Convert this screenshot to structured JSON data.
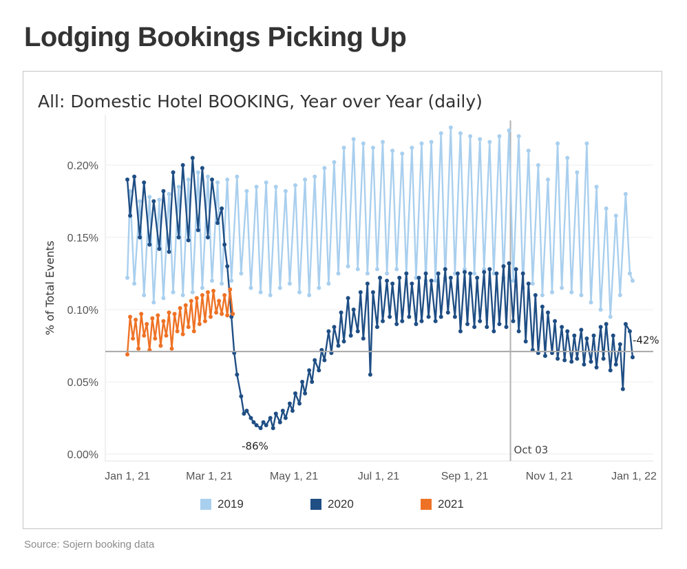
{
  "page_title": "Lodging Bookings Picking Up",
  "source": "Source: Sojern booking data",
  "chart_data": {
    "type": "line",
    "title": "All: Domestic Hotel BOOKING, Year over Year (daily)",
    "ylabel": "% of Total Events",
    "xlabel": "",
    "ylim": [
      0,
      0.23
    ],
    "yticks": [
      0,
      0.05,
      0.1,
      0.15,
      0.2
    ],
    "ytick_labels": [
      "0.00%",
      "0.05%",
      "0.10%",
      "0.15%",
      "0.20%"
    ],
    "xlim": [
      0,
      365
    ],
    "xticks": [
      0,
      59,
      120,
      181,
      243,
      304,
      365
    ],
    "xtick_labels": [
      "Jan 1, 21",
      "Mar 1, 21",
      "May 1, 21",
      "Jul 1, 21",
      "Sep 1, 21",
      "Nov 1, 21",
      "Jan 1, 22"
    ],
    "reference_line": {
      "y": 0.071
    },
    "vertical_marker": {
      "x": 276,
      "label": "Oct 03"
    },
    "annotations": [
      {
        "x": 92,
        "y": 0.015,
        "text": "-86%"
      },
      {
        "x": 362,
        "y": 0.073,
        "text": "-42%"
      }
    ],
    "legend": [
      "2019",
      "2020",
      "2021"
    ],
    "series": [
      {
        "name": "2019",
        "color": "#a9cfee",
        "description": "weekly oscillation",
        "x": [
          0,
          2,
          5,
          9,
          12,
          16,
          19,
          23,
          26,
          30,
          33,
          37,
          40,
          44,
          47,
          51,
          54,
          58,
          61,
          65,
          68,
          72,
          75,
          79,
          82,
          86,
          89,
          93,
          96,
          100,
          103,
          107,
          110,
          114,
          117,
          121,
          124,
          128,
          131,
          135,
          138,
          142,
          145,
          149,
          152,
          156,
          159,
          163,
          166,
          170,
          173,
          177,
          180,
          184,
          187,
          191,
          194,
          198,
          201,
          205,
          208,
          212,
          215,
          219,
          222,
          226,
          229,
          233,
          236,
          240,
          243,
          247,
          250,
          254,
          257,
          261,
          264,
          268,
          271,
          275,
          278,
          282,
          285,
          289,
          292,
          296,
          299,
          303,
          306,
          310,
          313,
          317,
          320,
          324,
          327,
          331,
          334,
          338,
          341,
          345,
          348,
          352,
          355,
          359,
          362,
          364
        ],
        "values": [
          0.122,
          0.182,
          0.118,
          0.175,
          0.11,
          0.178,
          0.105,
          0.176,
          0.108,
          0.18,
          0.112,
          0.185,
          0.11,
          0.19,
          0.112,
          0.195,
          0.115,
          0.192,
          0.12,
          0.188,
          0.118,
          0.19,
          0.12,
          0.192,
          0.125,
          0.182,
          0.115,
          0.185,
          0.112,
          0.188,
          0.11,
          0.185,
          0.115,
          0.182,
          0.118,
          0.186,
          0.112,
          0.19,
          0.11,
          0.192,
          0.115,
          0.198,
          0.118,
          0.202,
          0.125,
          0.212,
          0.13,
          0.218,
          0.128,
          0.215,
          0.125,
          0.212,
          0.128,
          0.216,
          0.125,
          0.21,
          0.128,
          0.208,
          0.125,
          0.212,
          0.122,
          0.215,
          0.12,
          0.216,
          0.12,
          0.222,
          0.122,
          0.226,
          0.125,
          0.222,
          0.128,
          0.22,
          0.125,
          0.218,
          0.128,
          0.216,
          0.125,
          0.22,
          0.122,
          0.224,
          0.12,
          0.22,
          0.115,
          0.21,
          0.118,
          0.2,
          0.11,
          0.19,
          0.112,
          0.215,
          0.115,
          0.205,
          0.112,
          0.195,
          0.11,
          0.215,
          0.105,
          0.185,
          0.1,
          0.17,
          0.095,
          0.165,
          0.11,
          0.18,
          0.125,
          0.12
        ]
      },
      {
        "name": "2020",
        "color": "#1f4e84",
        "description": "pandemic dip",
        "x": [
          0,
          2,
          5,
          9,
          12,
          16,
          19,
          23,
          26,
          30,
          33,
          37,
          40,
          44,
          47,
          51,
          54,
          58,
          61,
          65,
          68,
          70,
          72,
          75,
          77,
          79,
          82,
          84,
          86,
          89,
          91,
          93,
          96,
          98,
          100,
          103,
          105,
          107,
          110,
          112,
          114,
          117,
          119,
          121,
          124,
          126,
          128,
          131,
          133,
          135,
          138,
          140,
          142,
          145,
          147,
          149,
          152,
          154,
          156,
          159,
          161,
          163,
          166,
          168,
          170,
          173,
          175,
          177,
          180,
          182,
          184,
          187,
          189,
          191,
          194,
          196,
          198,
          201,
          203,
          205,
          208,
          210,
          212,
          215,
          217,
          219,
          222,
          224,
          226,
          229,
          231,
          233,
          236,
          238,
          240,
          243,
          245,
          247,
          250,
          252,
          254,
          257,
          259,
          261,
          264,
          266,
          268,
          271,
          273,
          275,
          278,
          280,
          282,
          285,
          287,
          289,
          292,
          294,
          296,
          299,
          301,
          303,
          306,
          308,
          310,
          313,
          315,
          317,
          320,
          322,
          324,
          327,
          329,
          331,
          334,
          336,
          338,
          341,
          343,
          345,
          348,
          350,
          352,
          355,
          357,
          359,
          362,
          364
        ],
        "values": [
          0.19,
          0.165,
          0.192,
          0.15,
          0.188,
          0.145,
          0.175,
          0.142,
          0.182,
          0.14,
          0.195,
          0.15,
          0.2,
          0.148,
          0.205,
          0.155,
          0.198,
          0.15,
          0.19,
          0.16,
          0.17,
          0.145,
          0.13,
          0.095,
          0.07,
          0.055,
          0.04,
          0.028,
          0.03,
          0.025,
          0.022,
          0.02,
          0.018,
          0.022,
          0.02,
          0.025,
          0.018,
          0.028,
          0.022,
          0.03,
          0.025,
          0.035,
          0.03,
          0.042,
          0.035,
          0.05,
          0.042,
          0.058,
          0.05,
          0.065,
          0.058,
          0.072,
          0.065,
          0.085,
          0.07,
          0.088,
          0.075,
          0.098,
          0.078,
          0.108,
          0.082,
          0.1,
          0.085,
          0.112,
          0.08,
          0.118,
          0.055,
          0.112,
          0.088,
          0.122,
          0.092,
          0.12,
          0.095,
          0.118,
          0.09,
          0.122,
          0.092,
          0.125,
          0.095,
          0.118,
          0.09,
          0.122,
          0.092,
          0.125,
          0.095,
          0.12,
          0.092,
          0.125,
          0.095,
          0.128,
          0.098,
          0.122,
          0.095,
          0.125,
          0.085,
          0.126,
          0.09,
          0.125,
          0.088,
          0.122,
          0.092,
          0.126,
          0.088,
          0.128,
          0.085,
          0.125,
          0.09,
          0.13,
          0.088,
          0.132,
          0.092,
          0.128,
          0.085,
          0.125,
          0.078,
          0.118,
          0.072,
          0.11,
          0.07,
          0.102,
          0.068,
          0.098,
          0.07,
          0.092,
          0.066,
          0.088,
          0.065,
          0.085,
          0.064,
          0.082,
          0.066,
          0.086,
          0.062,
          0.08,
          0.064,
          0.082,
          0.06,
          0.088,
          0.066,
          0.09,
          0.058,
          0.082,
          0.062,
          0.076,
          0.045,
          0.09,
          0.085,
          0.067
        ]
      },
      {
        "name": "2021",
        "color": "#ee7225",
        "description": "early 2021",
        "x": [
          0,
          2,
          4,
          6,
          8,
          10,
          12,
          14,
          16,
          18,
          20,
          22,
          24,
          26,
          28,
          30,
          32,
          34,
          36,
          38,
          40,
          42,
          44,
          46,
          48,
          50,
          52,
          54,
          56,
          58,
          60,
          62,
          64,
          66,
          68,
          70,
          72,
          74,
          76
        ],
        "values": [
          0.069,
          0.095,
          0.08,
          0.093,
          0.073,
          0.097,
          0.082,
          0.09,
          0.072,
          0.094,
          0.08,
          0.096,
          0.075,
          0.092,
          0.082,
          0.098,
          0.073,
          0.097,
          0.085,
          0.101,
          0.083,
          0.103,
          0.088,
          0.106,
          0.085,
          0.108,
          0.09,
          0.11,
          0.092,
          0.112,
          0.095,
          0.113,
          0.098,
          0.106,
          0.097,
          0.11,
          0.096,
          0.114,
          0.097
        ]
      }
    ]
  }
}
